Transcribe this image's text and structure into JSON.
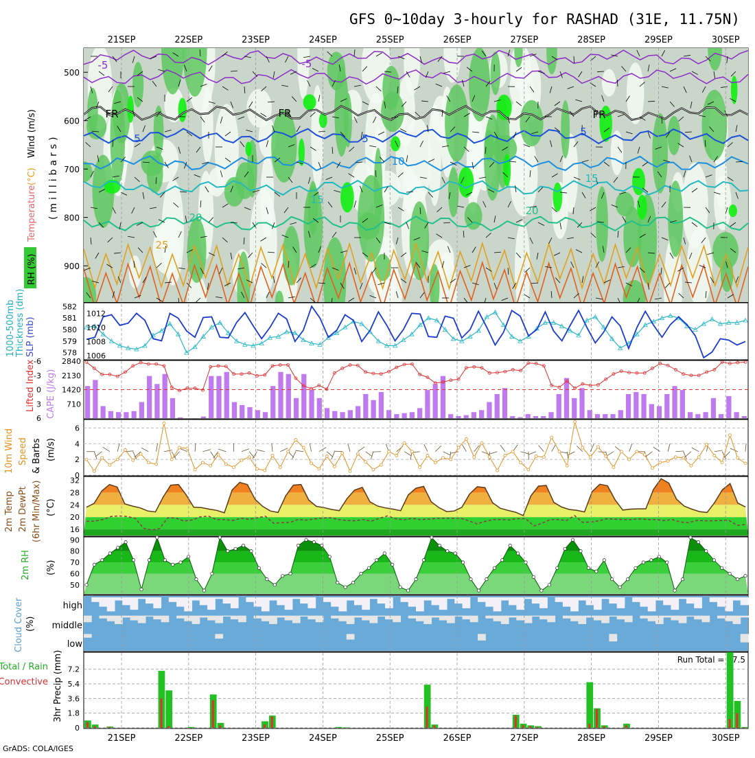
{
  "title": "GFS 0~10day 3-hourly for RASHAD (31E, 11.75N)",
  "credit": "GrADS: COLA/IGES",
  "date_labels": [
    "21SEP",
    "22SEP",
    "23SEP",
    "24SEP",
    "25SEP",
    "26SEP",
    "27SEP",
    "28SEP",
    "29SEP",
    "30SEP"
  ],
  "labels": {
    "p1": {
      "rh": "RH (%)",
      "temperature": "Temperature",
      "temp_unit": "(°C)",
      "wind": "Wind (m/s)",
      "axis": "(millibars)"
    },
    "p2": {
      "thickness": "1000-500mb",
      "thickness2": "Thickness (dm)",
      "slp": "SLP (mb)"
    },
    "p3": {
      "li": "Lifted Index",
      "cape": "CAPE (J/kg)"
    },
    "p4": {
      "l1": "10m Wind",
      "l2": "Speed",
      "l3": "& Barbs",
      "unit": "(m/s)"
    },
    "p5": {
      "l1": "2m Temp",
      "l2": "2m DewPt",
      "l3": "(6hr Min/Max)",
      "unit": "(°C)"
    },
    "p6": {
      "l1": "2m RH",
      "unit": "(%)"
    },
    "p7": {
      "l1": "Cloud Cover",
      "unit": "(%)",
      "high": "high",
      "middle": "middle",
      "low": "low"
    },
    "p8": {
      "total": "Total / Rain",
      "conv": "Convective",
      "axis": "3hr Precip (mm)",
      "run_total": "Run Total = 47.5"
    }
  },
  "colors": {
    "rh_green": "#1fc41f",
    "temp_orange": "#ff8c00",
    "cloud_blue": "#6aaad8",
    "precip_green": "#22c022",
    "precip_red": "#e03030",
    "cape_purple": "#c07af0",
    "slp_blue": "#1a3ad0",
    "thick_cyan": "#28b8c8"
  },
  "chart_data": [
    {
      "type": "heatmap",
      "panel": "upper-air cross section",
      "ylabel": "(millibars)",
      "ylim": [
        975,
        450
      ],
      "y_ticks": [
        500,
        600,
        700,
        800,
        900
      ],
      "x_categories": [
        "21SEP",
        "22SEP",
        "23SEP",
        "24SEP",
        "25SEP",
        "26SEP",
        "27SEP",
        "28SEP",
        "29SEP",
        "30SEP"
      ],
      "isotherm_labels": [
        "-5",
        "-5",
        "FR",
        "FR",
        "FR",
        "5",
        "5",
        "5",
        "10",
        "15",
        "15",
        "20",
        "20",
        "25"
      ]
    },
    {
      "type": "line",
      "panel": "thickness-slp",
      "series": [
        {
          "name": "1000-500mb Thickness (dm)",
          "axis": "left",
          "ylim": [
            577.5,
            582.2
          ],
          "ticks": [
            578,
            579,
            580,
            581,
            582
          ],
          "values": [
            580.2,
            580.3,
            579.6,
            579.0,
            578.6,
            578.4,
            578.3,
            578.6,
            579.5,
            579.9,
            580.5,
            579.6,
            578.0,
            578.5,
            579.4,
            580.2,
            580.6,
            579.7,
            579.0,
            578.7,
            578.6,
            578.8,
            579.3,
            579.4,
            579.8,
            579.7,
            579.1,
            578.8,
            578.7,
            579.3,
            579.7,
            580.2,
            580.7,
            580.5,
            579.8,
            579.0,
            578.6,
            578.6,
            579.1,
            579.6,
            580.4,
            581.0,
            580.8,
            580.0,
            579.2,
            579.0,
            579.4,
            579.9,
            581.1,
            581.5,
            580.4,
            579.4,
            579.0,
            579.4,
            580.1,
            580.6,
            580.6,
            580.3,
            579.9,
            579.5,
            580.8,
            581.1,
            580.2,
            579.2,
            578.4,
            578.8,
            579.6,
            580.4,
            580.7,
            581.0,
            581.2,
            581.0,
            580.3,
            580.0,
            580.5,
            580.9,
            580.5,
            580.6,
            580.6,
            580.8
          ]
        },
        {
          "name": "SLP (mb)",
          "axis": "right",
          "ylim": [
            1005.6,
            1013.3
          ],
          "ticks": [
            1006,
            1008,
            1010,
            1012
          ],
          "values": [
            1008.3,
            1008.6,
            1011.5,
            1011.8,
            1010.3,
            1010.6,
            1012.0,
            1011.0,
            1008.4,
            1008.1,
            1012.0,
            1011.3,
            1009.5,
            1008.6,
            1011.4,
            1011.5,
            1008.6,
            1008.5,
            1010.7,
            1012.1,
            1010.2,
            1008.4,
            1010.0,
            1012.0,
            1011.2,
            1008.0,
            1009.6,
            1013.0,
            1011.3,
            1008.6,
            1009.6,
            1011.8,
            1011.0,
            1008.0,
            1009.6,
            1012.2,
            1010.3,
            1008.1,
            1009.7,
            1012.0,
            1011.9,
            1008.7,
            1008.6,
            1011.6,
            1011.3,
            1008.5,
            1009.7,
            1012.3,
            1010.0,
            1007.5,
            1009.3,
            1012.4,
            1011.6,
            1008.8,
            1009.7,
            1012.2,
            1009.5,
            1008.1,
            1010.3,
            1012.4,
            1010.0,
            1007.8,
            1009.3,
            1011.5,
            1010.2,
            1007.0,
            1010.0,
            1012.3,
            1010.3,
            1008.6,
            1010.4,
            1011.5,
            1010.4,
            1008.8,
            1005.7,
            1006.5,
            1008.4,
            1008.2,
            1007.5,
            1008.0
          ]
        }
      ]
    },
    {
      "type": "bar",
      "panel": "cape-lifted-index",
      "series": [
        {
          "name": "CAPE (J/kg)",
          "axis": "right",
          "ylim": [
            0,
            2840
          ],
          "ticks": [
            710,
            1420,
            2130,
            2840
          ],
          "values": [
            1600,
            1900,
            600,
            350,
            300,
            300,
            350,
            800,
            2100,
            1700,
            2200,
            1000,
            40,
            0,
            0,
            80,
            2100,
            2100,
            2300,
            800,
            650,
            550,
            400,
            300,
            1600,
            2300,
            2200,
            1000,
            2200,
            1400,
            1000,
            500,
            350,
            300,
            400,
            600,
            1200,
            900,
            1300,
            400,
            200,
            250,
            300,
            500,
            1400,
            1700,
            2100,
            200,
            100,
            150,
            300,
            400,
            800,
            1200,
            1500,
            100,
            50,
            200,
            100,
            100,
            300,
            1200,
            2000,
            1000,
            1500,
            400,
            200,
            200,
            200,
            400,
            1200,
            1300,
            1200,
            700,
            600,
            1200,
            1600,
            1400,
            300,
            200,
            300,
            1000,
            200,
            1100,
            300,
            100
          ]
        },
        {
          "name": "Lifted Index",
          "axis": "left",
          "ylim": [
            6,
            -6
          ],
          "ticks": [
            -6,
            -3,
            0,
            3,
            6
          ],
          "values": [
            -5.8,
            -4.5,
            -3.2,
            -3.2,
            -2.8,
            -3.7,
            -5.0,
            -5.7,
            -5.4,
            -5.4,
            -5.0,
            -0.5,
            0.2,
            -0.3,
            -0.3,
            0.1,
            -4.8,
            -5.0,
            -4.9,
            -3.3,
            -3.3,
            -3.5,
            -2.9,
            -3.1,
            -5.0,
            -5.2,
            -5.2,
            -2.4,
            -0.8,
            -0.2,
            -0.9,
            -0.1,
            -3.5,
            -4.5,
            -5.2,
            -5.1,
            -3.7,
            -3.4,
            -3.3,
            -3.8,
            -4.7,
            -5.3,
            -5.4,
            -3.2,
            -2.6,
            -1.4,
            -1.6,
            -2.0,
            -2.2,
            -4.6,
            -4.8,
            -4.6,
            -3.5,
            -3.6,
            -3.8,
            -4.2,
            -4.0,
            -5.6,
            -5.5,
            -5.0,
            -0.9,
            -0.5,
            -1.8,
            -0.3,
            -1.2,
            -0.9,
            -1.0,
            -2.2,
            -3.3,
            -3.9,
            -3.6,
            -3.5,
            -3.5,
            -4.5,
            -5.5,
            -5.1,
            -4.2,
            -3.3,
            -3.0,
            -3.0,
            -3.7,
            -4.2,
            -5.8,
            -5.5,
            -5.7,
            -5.8
          ]
        }
      ]
    },
    {
      "type": "line",
      "panel": "10m-wind",
      "ylabel": "(m/s)",
      "ylim": [
        0,
        7
      ],
      "ticks": [
        0,
        2,
        4,
        6
      ],
      "series": [
        {
          "name": "Speed",
          "values": [
            2.0,
            0.5,
            2.2,
            1.3,
            2.0,
            3.2,
            1.9,
            2.7,
            1.6,
            1.4,
            6.6,
            2.0,
            3.5,
            3.4,
            0.7,
            1.6,
            1.2,
            2.6,
            1.4,
            1.0,
            1.9,
            2.3,
            0.8,
            0.6,
            2.5,
            1.0,
            3.0,
            4.5,
            3.5,
            1.5,
            0.8,
            2.4,
            1.1,
            2.8,
            0.5,
            2.7,
            1.7,
            0.7,
            1.3,
            3.0,
            2.5,
            4.1,
            3.0,
            1.0,
            2.5,
            1.6,
            2.2,
            2.0,
            3.5,
            4.6,
            2.3,
            4.1,
            2.3,
            0.6,
            2.5,
            3.0,
            1.6,
            0.7,
            2.4,
            2.3,
            4.8,
            3.0,
            1.2,
            6.8,
            3.5,
            2.3,
            3.6,
            2.4,
            1.0,
            3.0,
            2.0,
            3.0,
            2.6,
            0.9,
            1.6,
            1.8,
            2.3,
            2.2,
            1.2,
            2.3,
            3.9,
            2.5,
            1.6,
            5.1,
            2.2,
            1.5
          ]
        }
      ]
    },
    {
      "type": "area",
      "panel": "2m-temp-dewpoint",
      "ylabel": "(°C)",
      "ylim": [
        14,
        33
      ],
      "ticks": [
        16,
        20,
        24,
        28,
        32
      ],
      "series": [
        {
          "name": "2m Temp",
          "values": [
            23.2,
            24.5,
            28.5,
            30.6,
            29.8,
            24.3,
            23.6,
            23.0,
            22.0,
            21.7,
            26.5,
            30.4,
            30.6,
            27.3,
            23.2,
            23.1,
            22.6,
            22.2,
            21.4,
            28.8,
            31.3,
            30.6,
            25.8,
            23.5,
            22.0,
            21.5,
            26.9,
            30.4,
            30.6,
            25.6,
            23.5,
            23.1,
            22.5,
            22.1,
            26.0,
            28.8,
            29.7,
            25.0,
            23.6,
            23.0,
            22.6,
            22.1,
            27.2,
            29.4,
            30.0,
            25.0,
            23.1,
            21.8,
            22.0,
            23.2,
            27.5,
            29.9,
            29.6,
            24.7,
            22.9,
            22.2,
            21.6,
            20.5,
            26.9,
            30.1,
            30.3,
            24.8,
            23.3,
            22.5,
            22.2,
            21.7,
            28.3,
            30.7,
            30.2,
            25.6,
            22.3,
            22.6,
            22.7,
            22.7,
            29.0,
            32.5,
            31.1,
            25.9,
            23.6,
            22.6,
            21.8,
            21.5,
            24.8,
            28.9,
            30.9,
            24.6,
            23.3
          ]
        },
        {
          "name": "2m DewPt",
          "values": [
            18.6,
            18.7,
            19.2,
            20.2,
            20.4,
            20.2,
            19.6,
            16.4,
            15.8,
            16.3,
            19.8,
            19.7,
            18.7,
            19.1,
            20.1,
            20.3,
            19.2,
            19.2,
            18.9,
            19.6,
            19.3,
            19.8,
            20.3,
            18.0,
            18.2,
            18.3,
            19.2,
            19.0,
            19.4,
            19.7,
            19.8,
            19.2,
            18.9,
            18.8,
            19.2,
            18.7,
            19.6,
            20.4,
            19.5,
            19.1,
            19.6,
            19.2,
            19.3,
            19.6,
            19.6,
            19.6,
            19.6,
            18.8,
            17.8,
            18.6,
            19.2,
            19.2,
            19.1,
            19.5,
            19.5,
            17.1,
            18.0,
            19.2,
            19.2,
            18.9,
            20.5,
            18.3,
            18.4,
            18.8,
            19.5,
            19.3,
            19.2,
            19.2,
            19.4,
            19.2,
            19.2,
            18.9,
            19.2,
            18.4,
            18.2,
            18.9,
            18.8,
            18.8,
            18.9,
            18.9,
            17.3,
            17.6
          ]
        }
      ]
    },
    {
      "type": "area",
      "panel": "2m-rh",
      "ylabel": "(%)",
      "ylim": [
        42,
        92
      ],
      "ticks": [
        50,
        60,
        70,
        80,
        90
      ],
      "values": [
        50,
        68,
        72,
        78,
        83,
        88,
        72,
        46,
        72,
        92,
        72,
        68,
        70,
        75,
        55,
        45,
        60,
        92,
        80,
        82,
        85,
        80,
        65,
        55,
        50,
        58,
        60,
        85,
        90,
        88,
        85,
        75,
        52,
        48,
        52,
        60,
        65,
        72,
        78,
        68,
        48,
        45,
        55,
        72,
        92,
        85,
        80,
        78,
        70,
        55,
        45,
        55,
        65,
        72,
        85,
        78,
        70,
        57,
        45,
        50,
        65,
        82,
        90,
        80,
        65,
        62,
        72,
        55,
        48,
        55,
        65,
        70,
        72,
        75,
        70,
        45,
        55,
        92,
        88,
        80,
        72,
        65,
        60,
        55,
        58
      ]
    },
    {
      "type": "heatmap",
      "panel": "cloud-cover",
      "rows": [
        "high",
        "middle",
        "low"
      ],
      "ylabel": "(%)"
    },
    {
      "type": "bar",
      "panel": "3hr-precip",
      "ylabel": "3hr Precip (mm)",
      "ylim": [
        0,
        9.2
      ],
      "ticks": [
        0,
        1.8,
        3.6,
        5.4,
        7.2
      ],
      "series": [
        {
          "name": "Total / Rain",
          "values": [
            0.9,
            0.4,
            0,
            0.15,
            0,
            0,
            0,
            0,
            0,
            0,
            7.0,
            4.6,
            0,
            0,
            0.1,
            0,
            0,
            4.1,
            0.6,
            0,
            0,
            0,
            0,
            0,
            0.8,
            1.5,
            0,
            0,
            0,
            0,
            0,
            0,
            0,
            0,
            0.1,
            0.05,
            0,
            0,
            0,
            0,
            0,
            0,
            0,
            0,
            0,
            0,
            5.3,
            0.4,
            0,
            0,
            0,
            0,
            0,
            0,
            0,
            0,
            0,
            0,
            1.6,
            0.5,
            0.3,
            0.2,
            0,
            0,
            0,
            0,
            0,
            0,
            5.6,
            2.4,
            0.3,
            0,
            0,
            0.5,
            0,
            0,
            0,
            0,
            0,
            0,
            0,
            0,
            0,
            0,
            0,
            0,
            0,
            9.3,
            3.3,
            0.1
          ]
        },
        {
          "name": "Convective",
          "values": [
            0.7,
            0.2,
            0,
            0.1,
            0,
            0,
            0,
            0,
            0,
            0,
            3.6,
            0.2,
            0,
            0,
            0,
            0,
            0,
            3.4,
            0.3,
            0,
            0,
            0,
            0,
            0,
            0.4,
            1.4,
            0,
            0,
            0,
            0,
            0,
            0,
            0,
            0,
            0,
            0,
            0,
            0,
            0,
            0,
            0,
            0,
            0,
            0,
            0,
            0,
            2.6,
            0.3,
            0,
            0,
            0,
            0,
            0,
            0,
            0,
            0,
            0,
            0,
            1.5,
            0.3,
            0.2,
            0.1,
            0,
            0,
            0,
            0,
            0,
            0,
            0.5,
            2.3,
            0.2,
            0,
            0,
            0.3,
            0,
            0,
            0,
            0,
            0,
            0,
            0,
            0,
            0,
            0,
            0,
            0,
            0,
            1.1,
            1.8,
            0.05
          ]
        }
      ]
    }
  ]
}
